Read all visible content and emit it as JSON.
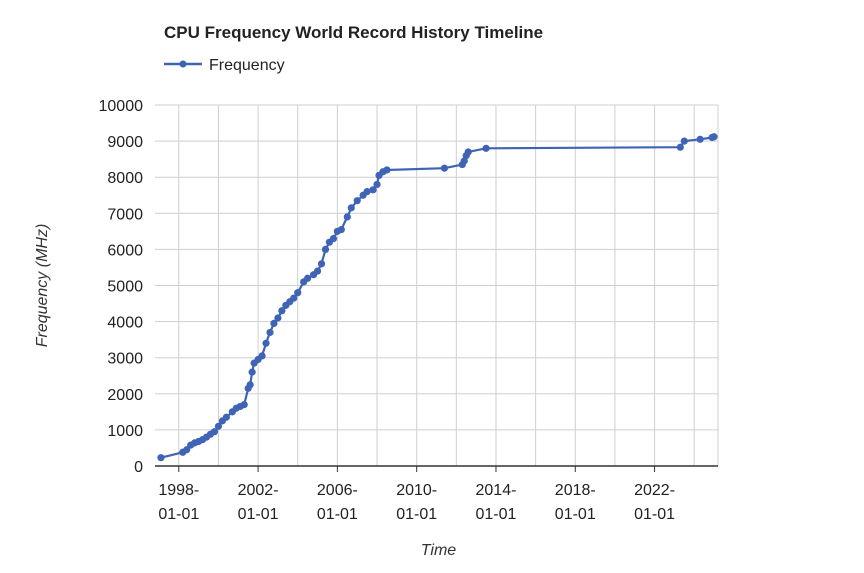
{
  "chart_data": {
    "type": "line",
    "title": "CPU Frequency World Record History Timeline",
    "xlabel": "Time",
    "ylabel": "Frequency (MHz)",
    "ylim": [
      0,
      10000
    ],
    "y_ticks": [
      0,
      1000,
      2000,
      3000,
      4000,
      5000,
      6000,
      7000,
      8000,
      9000,
      10000
    ],
    "x_ticks": [
      {
        "value": 1998.0,
        "line1": "1998-",
        "line2": "01-01"
      },
      {
        "value": 2002.0,
        "line1": "2002-",
        "line2": "01-01"
      },
      {
        "value": 2006.0,
        "line1": "2006-",
        "line2": "01-01"
      },
      {
        "value": 2010.0,
        "line1": "2010-",
        "line2": "01-01"
      },
      {
        "value": 2014.0,
        "line1": "2014-",
        "line2": "01-01"
      },
      {
        "value": 2018.0,
        "line1": "2018-",
        "line2": "01-01"
      },
      {
        "value": 2022.0,
        "line1": "2022-",
        "line2": "01-01"
      }
    ],
    "xlim": [
      1996.8,
      2025.2
    ],
    "grid": true,
    "legend_position": "top-left",
    "color": "#3f63b5",
    "series": [
      {
        "name": "Frequency",
        "x": [
          1997.1,
          1998.2,
          1998.4,
          1998.6,
          1998.8,
          1999.0,
          1999.2,
          1999.4,
          1999.6,
          1999.8,
          2000.0,
          2000.2,
          2000.4,
          2000.7,
          2000.9,
          2001.1,
          2001.3,
          2001.5,
          2001.6,
          2001.7,
          2001.8,
          2002.0,
          2002.2,
          2002.4,
          2002.6,
          2002.8,
          2003.0,
          2003.2,
          2003.4,
          2003.6,
          2003.8,
          2004.0,
          2004.3,
          2004.5,
          2004.8,
          2005.0,
          2005.2,
          2005.4,
          2005.6,
          2005.8,
          2006.0,
          2006.2,
          2006.5,
          2006.7,
          2007.0,
          2007.3,
          2007.5,
          2007.8,
          2008.0,
          2008.1,
          2008.3,
          2008.5,
          2011.4,
          2012.3,
          2012.4,
          2012.5,
          2012.6,
          2013.5,
          2023.3,
          2023.5,
          2024.3,
          2024.9,
          2025.0
        ],
        "y": [
          230,
          380,
          450,
          580,
          640,
          680,
          730,
          800,
          880,
          950,
          1100,
          1250,
          1350,
          1500,
          1600,
          1650,
          1700,
          2150,
          2250,
          2600,
          2850,
          2950,
          3050,
          3400,
          3700,
          3950,
          4100,
          4300,
          4450,
          4550,
          4650,
          4800,
          5100,
          5200,
          5300,
          5400,
          5600,
          6000,
          6200,
          6300,
          6500,
          6550,
          6900,
          7150,
          7350,
          7500,
          7600,
          7650,
          7800,
          8050,
          8150,
          8200,
          8250,
          8350,
          8450,
          8600,
          8700,
          8800,
          8830,
          9000,
          9050,
          9100,
          9120
        ]
      }
    ]
  }
}
